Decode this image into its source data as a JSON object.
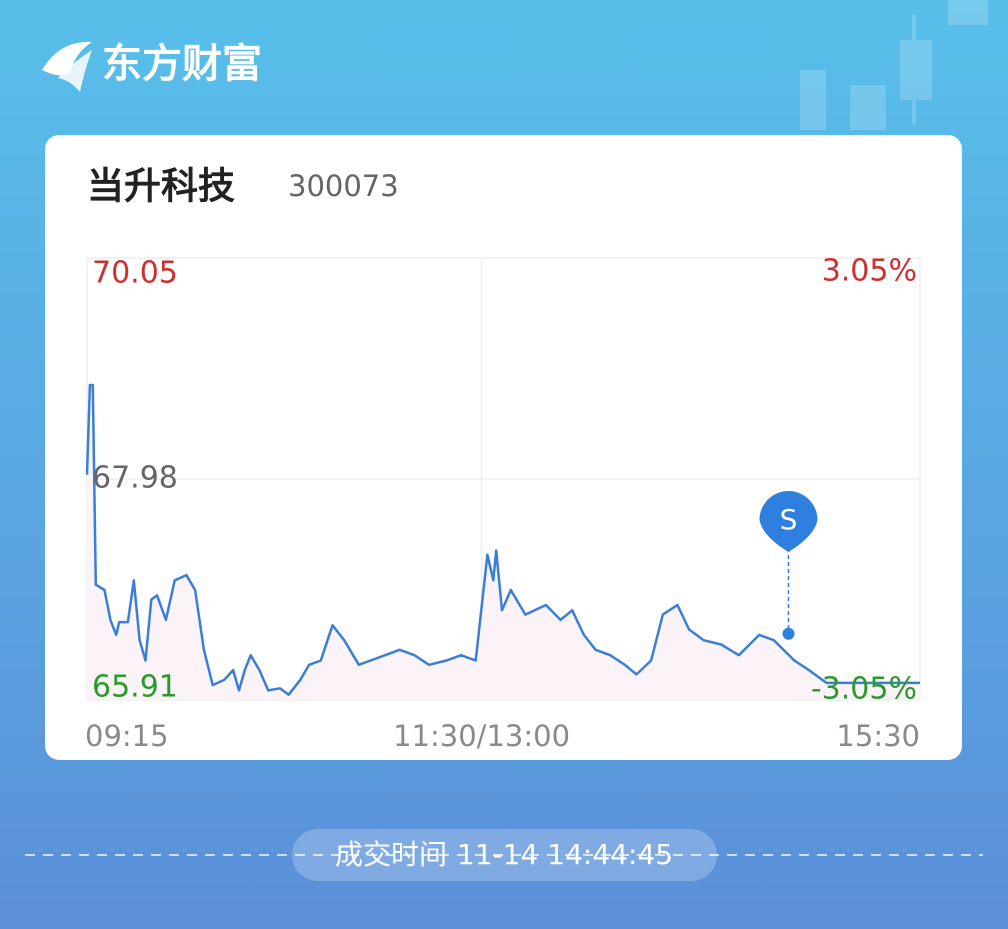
{
  "app": {
    "brand": "东方财富"
  },
  "stock": {
    "name": "当升科技",
    "code": "300073"
  },
  "chart_data": {
    "type": "line",
    "color": "#3a7fd5",
    "area_color": "#fbf3f8",
    "x": [
      0,
      1,
      2,
      3,
      6,
      8,
      10,
      11,
      14,
      16,
      18,
      20,
      22,
      24,
      27,
      30,
      34,
      37,
      40,
      43,
      47,
      50,
      52,
      54,
      56,
      59,
      62,
      66,
      69,
      73,
      76,
      80,
      84,
      88,
      93,
      97,
      102,
      107,
      112,
      117,
      123,
      128,
      133,
      137,
      139,
      140,
      142,
      145,
      150,
      157,
      162,
      166,
      170,
      174,
      179,
      184,
      188,
      193,
      197,
      202,
      206,
      211,
      217,
      223,
      230,
      235,
      242,
      247,
      253,
      285
    ],
    "values": [
      68.02,
      68.86,
      68.86,
      66.99,
      66.94,
      66.66,
      66.52,
      66.64,
      66.64,
      67.03,
      66.47,
      66.28,
      66.85,
      66.89,
      66.66,
      67.03,
      67.08,
      66.94,
      66.38,
      66.05,
      66.1,
      66.19,
      66.0,
      66.19,
      66.33,
      66.19,
      66.0,
      66.02,
      65.96,
      66.1,
      66.24,
      66.28,
      66.61,
      66.47,
      66.24,
      66.28,
      66.33,
      66.38,
      66.33,
      66.24,
      66.28,
      66.33,
      66.28,
      67.27,
      67.03,
      67.31,
      66.75,
      66.94,
      66.71,
      66.8,
      66.66,
      66.75,
      66.52,
      66.38,
      66.33,
      66.24,
      66.15,
      66.28,
      66.71,
      66.8,
      66.57,
      66.47,
      66.43,
      66.33,
      66.52,
      66.47,
      66.28,
      66.19,
      66.07,
      66.07
    ],
    "xlim": [
      0,
      285
    ],
    "xticks": [
      {
        "value": 0,
        "label": "09:15"
      },
      {
        "value": 135,
        "label": "11:30/13:00"
      },
      {
        "value": 285,
        "label": "15:30"
      }
    ],
    "ylim": [
      65.91,
      70.05
    ],
    "yticks": [
      70.05,
      67.98,
      65.91
    ],
    "y2lim": [
      -3.05,
      3.05
    ],
    "y2ticks": [
      {
        "value": 3.05,
        "label": "3.05%"
      },
      {
        "value": -3.05,
        "label": "-3.05%"
      }
    ],
    "grid": true,
    "annotations": [
      {
        "label": "S",
        "x": 240,
        "value": 66.53,
        "color": "#2f7fe0"
      }
    ]
  },
  "footer": {
    "trade_time_label": "成交时间",
    "trade_time": "11-14 14:44:45"
  }
}
